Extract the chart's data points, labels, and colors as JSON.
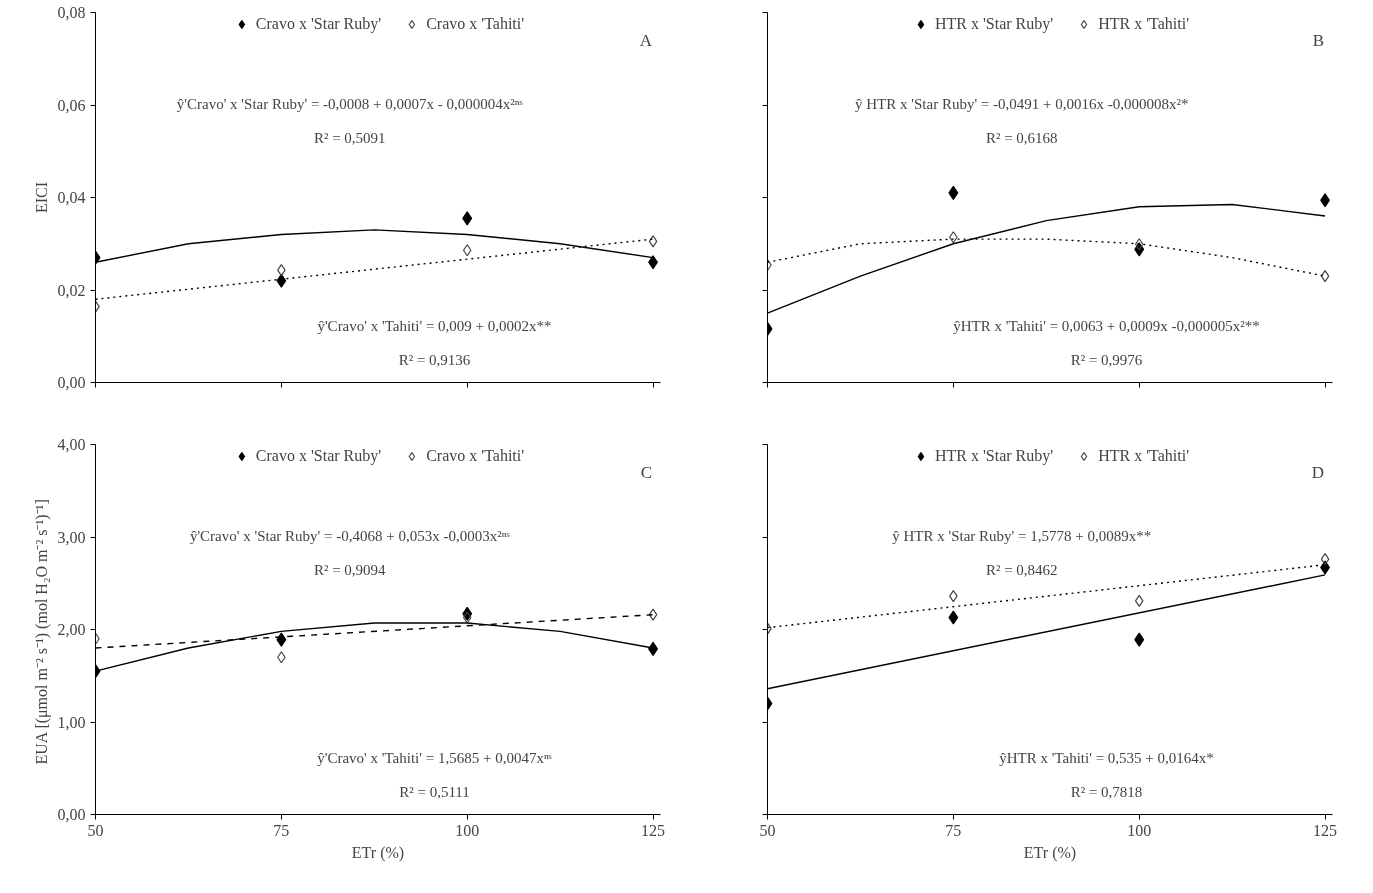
{
  "chart_data": [
    {
      "type": "scatter",
      "ylabel": "EICI",
      "xlim": [
        50,
        126
      ],
      "ylim": [
        0,
        0.08
      ],
      "xticks": [
        50,
        75,
        100,
        125
      ],
      "yticks": [
        {
          "value": 0,
          "label": "0,00"
        },
        {
          "value": 0.02,
          "label": "0,02"
        },
        {
          "value": 0.04,
          "label": "0,04"
        },
        {
          "value": 0.06,
          "label": "0,06"
        },
        {
          "value": 0.08,
          "label": "0,08"
        }
      ],
      "tick_labels": "y",
      "grid": false,
      "legend": "top",
      "marker": "diamond",
      "x": [
        50,
        75,
        100,
        125
      ],
      "annotations": [
        "A",
        "ŷ'Cravo' x 'Star Ruby' = -0,0008 + 0,0007x - 0,000004x²ⁿˢ",
        "R² = 0,5091",
        "ŷ'Cravo' x 'Tahiti' = 0,009 + 0,0002x**",
        "R² = 0,9136"
      ],
      "series": [
        {
          "name": "Cravo x 'Star Ruby'",
          "color": "#000000",
          "values": [
            0.027,
            0.022,
            0.0355,
            0.026
          ]
        },
        {
          "name": "Cravo x 'Tahiti'",
          "color": "#444444",
          "values": [
            0.0164,
            0.0243,
            0.0286,
            0.0305
          ]
        },
        {
          "type": "line",
          "color": "#000000",
          "line_style": "solid",
          "marker": "none",
          "x": [
            50,
            62.5,
            75,
            87.5,
            100,
            112.5,
            125
          ],
          "values": [
            0.026,
            0.03,
            0.032,
            0.033,
            0.032,
            0.03,
            0.027
          ]
        },
        {
          "type": "line",
          "color": "#000000",
          "line_style": "dotted",
          "marker": "none",
          "x": [
            50,
            125
          ],
          "values": [
            0.018,
            0.031
          ]
        }
      ]
    },
    {
      "type": "scatter",
      "xlim": [
        50,
        126
      ],
      "ylim": [
        0,
        0.08
      ],
      "xticks": [
        50,
        75,
        100,
        125
      ],
      "yticks": [
        0,
        0.02,
        0.04,
        0.06,
        0.08
      ],
      "tick_labels": false,
      "grid": false,
      "legend": "top",
      "marker": "diamond",
      "x": [
        50,
        75,
        100,
        125
      ],
      "annotations": [
        "B",
        "ŷ HTR x 'Star Ruby' = -0,0491 + 0,0016x -0,000008x²*",
        "R² = 0,6168",
        "ŷHTR x 'Tahiti' = 0,0063 + 0,0009x -0,000005x²**",
        "R² = 0,9976"
      ],
      "series": [
        {
          "name": "HTR x 'Star Ruby'",
          "color": "#000000",
          "values": [
            0.0116,
            0.041,
            0.0288,
            0.0394
          ]
        },
        {
          "name": "HTR x 'Tahiti'",
          "color": "#444444",
          "values": [
            0.0254,
            0.0314,
            0.0299,
            0.023
          ]
        },
        {
          "type": "line",
          "color": "#000000",
          "line_style": "solid",
          "marker": "none",
          "x": [
            50,
            62.5,
            75,
            87.5,
            100,
            112.5,
            125
          ],
          "values": [
            0.015,
            0.023,
            0.03,
            0.035,
            0.038,
            0.0385,
            0.036
          ]
        },
        {
          "type": "line",
          "color": "#000000",
          "line_style": "dotted",
          "marker": "none",
          "x": [
            50,
            62.5,
            75,
            87.5,
            100,
            112.5,
            125
          ],
          "values": [
            0.026,
            0.03,
            0.031,
            0.031,
            0.03,
            0.027,
            0.023
          ]
        }
      ]
    },
    {
      "type": "scatter",
      "xlabel": "ETr (%)",
      "ylabel": "EUA  [(μmol m⁻² s⁻¹) (mol H₂O m⁻² s⁻¹)⁻¹]",
      "xlim": [
        50,
        126
      ],
      "ylim": [
        0,
        4
      ],
      "xticks": [
        50,
        75,
        100,
        125
      ],
      "yticks": [
        {
          "value": 0,
          "label": "0,00"
        },
        {
          "value": 1,
          "label": "1,00"
        },
        {
          "value": 2,
          "label": "2,00"
        },
        {
          "value": 3,
          "label": "3,00"
        },
        {
          "value": 4,
          "label": "4,00"
        }
      ],
      "grid": false,
      "legend": "top",
      "marker": "diamond",
      "x": [
        50,
        75,
        100,
        125
      ],
      "annotations": [
        "C",
        "ŷ'Cravo' x 'Star Ruby' = -0,4068 + 0,053x -0,0003x²ⁿˢ",
        "R² = 0,9094",
        "ŷ'Cravo' x 'Tahiti' = 1,5685 + 0,0047xⁿˢ",
        "R² = 0,5111"
      ],
      "series": [
        {
          "name": "Cravo x 'Star Ruby'",
          "color": "#000000",
          "values": [
            1.55,
            1.89,
            2.17,
            1.79
          ]
        },
        {
          "name": "Cravo x 'Tahiti'",
          "color": "#444444",
          "values": [
            1.9,
            1.7,
            2.13,
            2.16
          ]
        },
        {
          "type": "line",
          "color": "#000000",
          "line_style": "solid",
          "marker": "none",
          "x": [
            50,
            62.5,
            75,
            87.5,
            100,
            112.5,
            125
          ],
          "values": [
            1.55,
            1.8,
            1.98,
            2.07,
            2.07,
            1.98,
            1.8
          ]
        },
        {
          "type": "line",
          "color": "#000000",
          "line_style": "dashed",
          "marker": "none",
          "x": [
            50,
            125
          ],
          "values": [
            1.8,
            2.16
          ]
        }
      ]
    },
    {
      "type": "scatter",
      "xlabel": "ETr (%)",
      "xlim": [
        50,
        126
      ],
      "ylim": [
        0,
        4
      ],
      "xticks": [
        50,
        75,
        100,
        125
      ],
      "yticks": [
        0,
        1,
        2,
        3,
        4
      ],
      "tick_labels": "x",
      "grid": false,
      "legend": "top",
      "marker": "diamond",
      "x": [
        50,
        75,
        100,
        125
      ],
      "annotations": [
        "D",
        "ŷ HTR x 'Star Ruby' = 1,5778 + 0,0089x**",
        "R² = 0,8462",
        "ŷHTR x 'Tahiti' = 0,535 + 0,0164x*",
        "R² = 0,7818"
      ],
      "series": [
        {
          "name": "HTR x 'Star Ruby'",
          "color": "#000000",
          "values": [
            1.2,
            2.13,
            1.89,
            2.67
          ]
        },
        {
          "name": "HTR x 'Tahiti'",
          "color": "#444444",
          "values": [
            2.01,
            2.36,
            2.31,
            2.76
          ]
        },
        {
          "type": "line",
          "color": "#000000",
          "line_style": "solid",
          "marker": "none",
          "x": [
            50,
            125
          ],
          "values": [
            1.36,
            2.59
          ]
        },
        {
          "type": "line",
          "color": "#000000",
          "line_style": "dotted",
          "marker": "none",
          "x": [
            50,
            125
          ],
          "values": [
            2.02,
            2.7
          ]
        }
      ]
    }
  ]
}
